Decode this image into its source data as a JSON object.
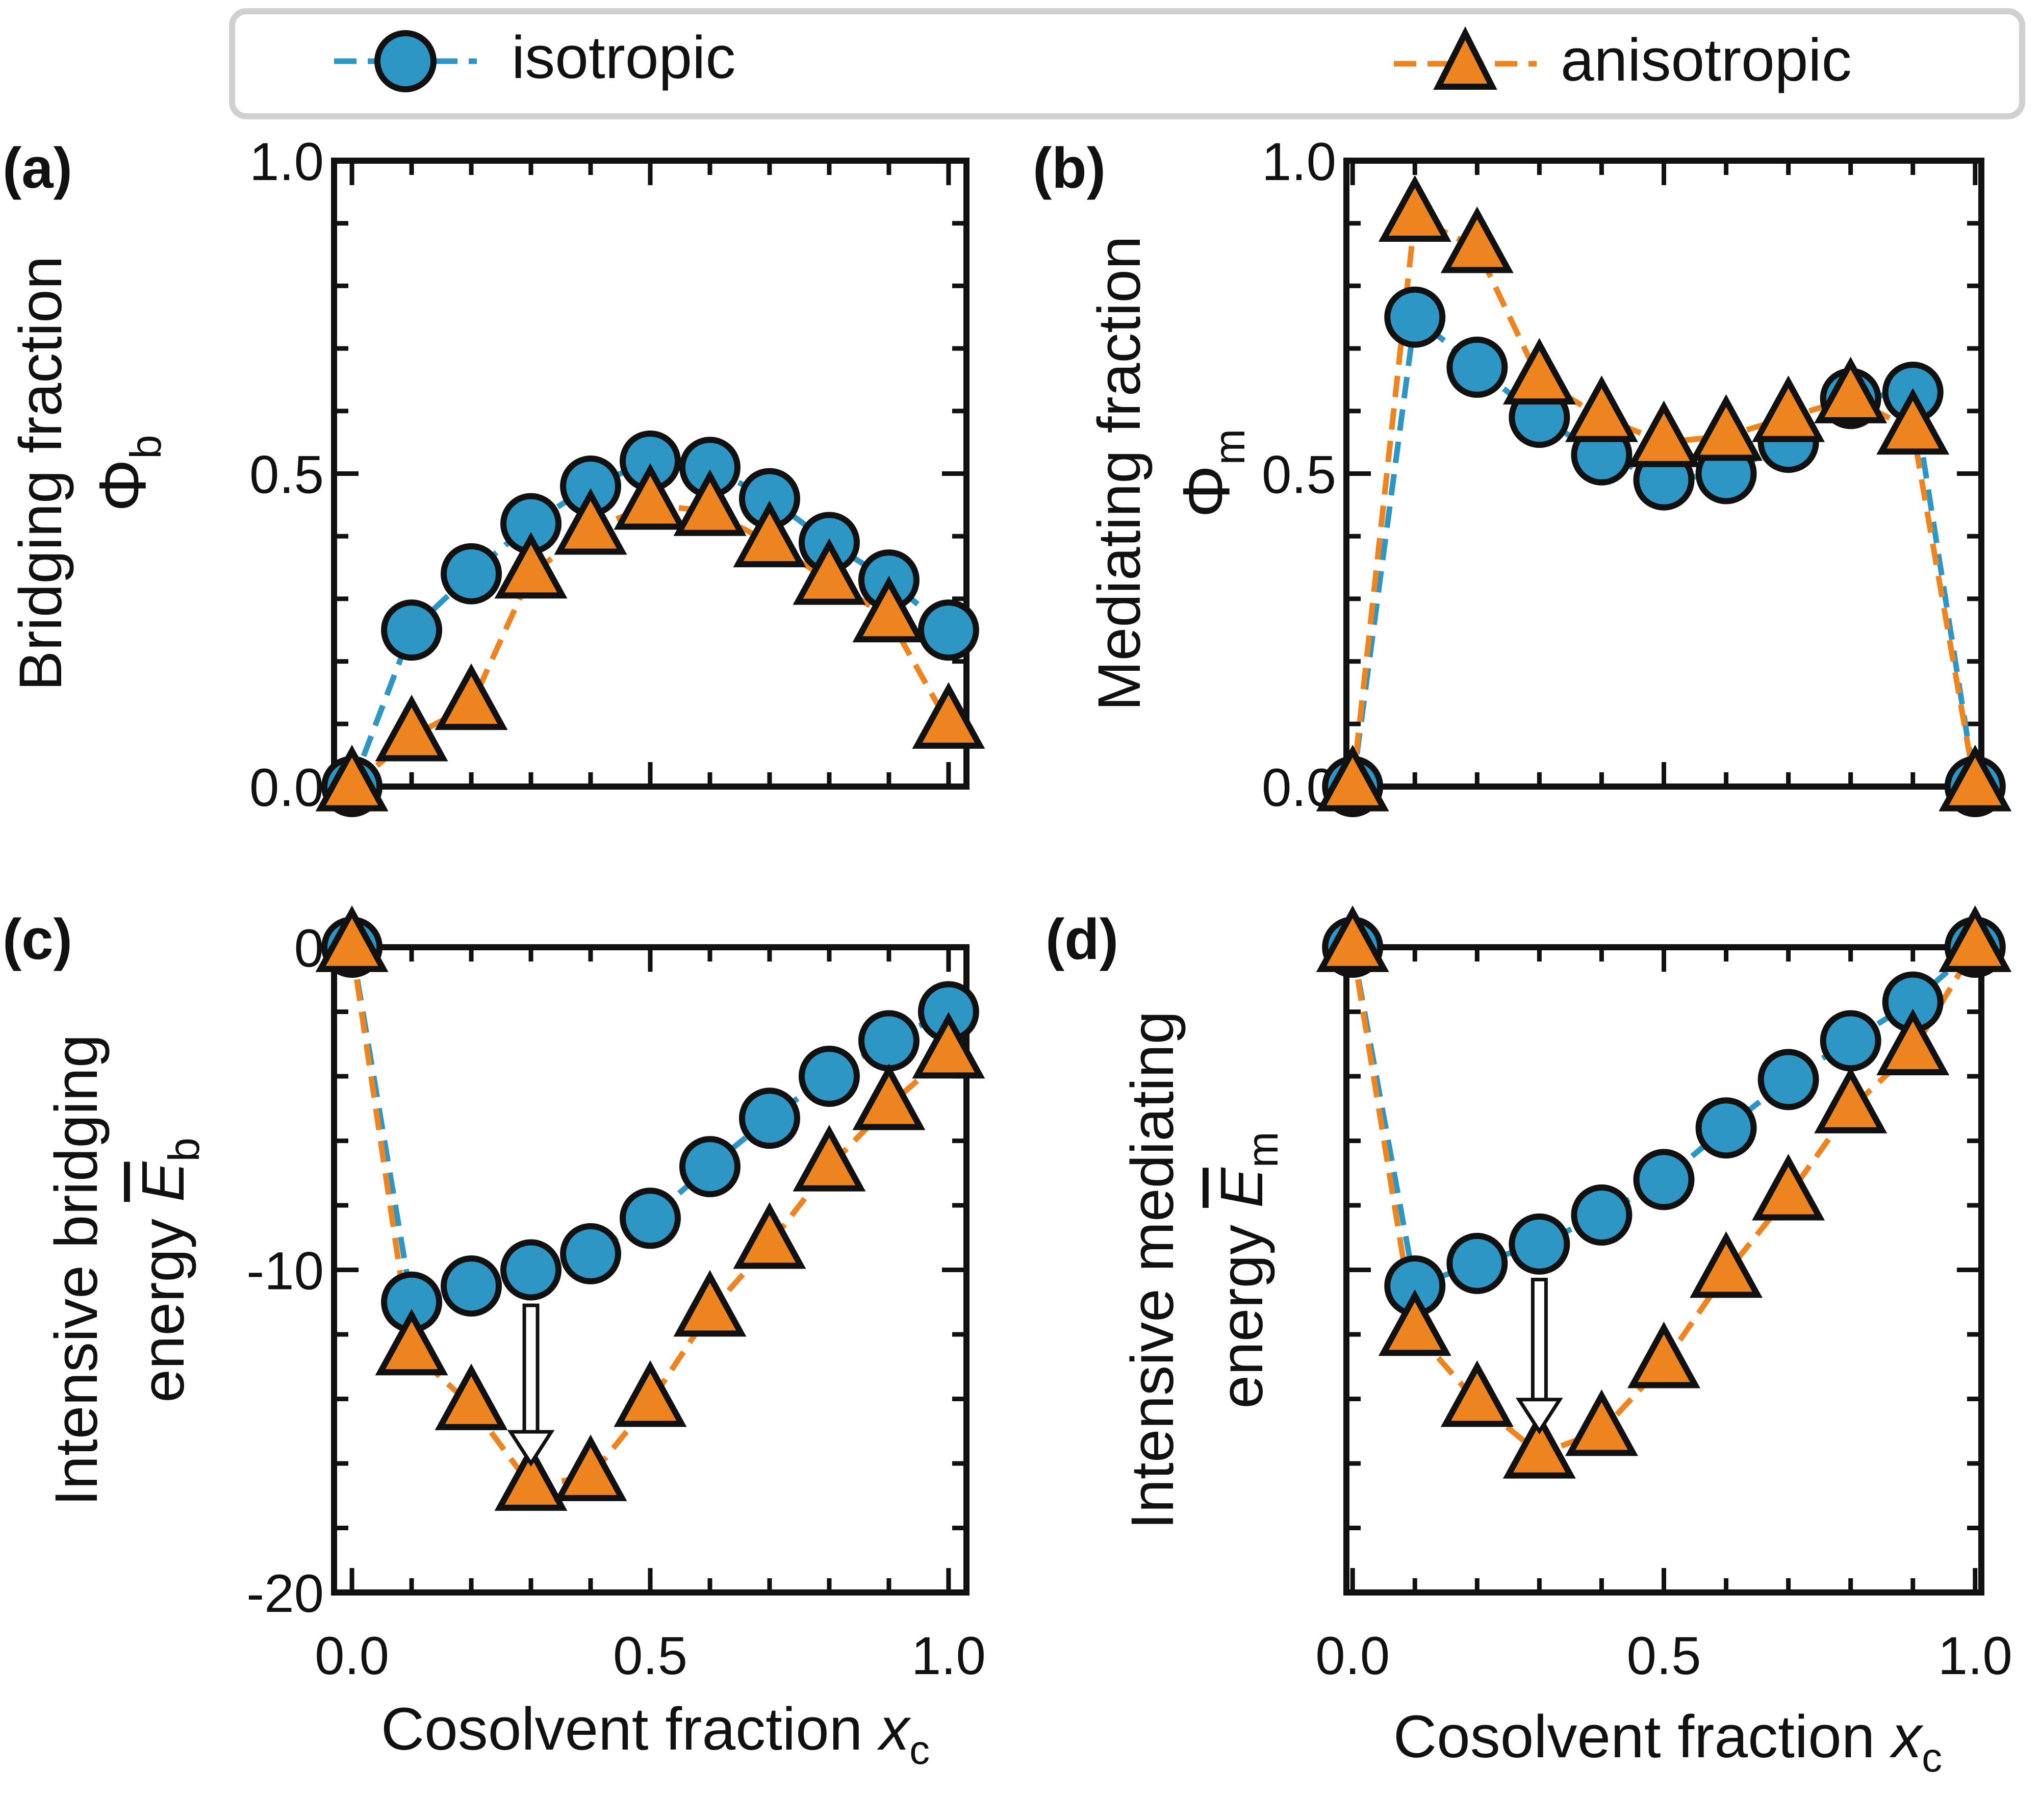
{
  "colors": {
    "isotropic": "#2e96c4",
    "anisotropic": "#ee8420",
    "edge": "#111111",
    "legend_frame": "#d0d0d0"
  },
  "legend": {
    "isotropic_label": "isotropic",
    "anisotropic_label": "anisotropic"
  },
  "chart_data": [
    {
      "id": "a",
      "panel_label": "(a)",
      "type": "line",
      "ylabel_line1": "Bridging fraction",
      "ylabel_sym": "Φ",
      "ylabel_sub": "b",
      "xlabel_pre": "Cosolvent fraction ",
      "xlabel_var": "x",
      "xlabel_sub": "c",
      "xlim": [
        -0.03,
        1.03
      ],
      "ylim": [
        0.0,
        1.0
      ],
      "yticks": [
        0.0,
        0.5,
        1.0
      ],
      "ytick_labels": [
        "0.0",
        "0.5",
        "1.0"
      ],
      "xticks": [
        0.0,
        0.5,
        1.0
      ],
      "xtick_labels": [
        "0.0",
        "0.5",
        "1.0"
      ],
      "show_xticklabels": false,
      "series": [
        {
          "name": "isotropic",
          "x": [
            0.0,
            0.1,
            0.2,
            0.3,
            0.4,
            0.5,
            0.6,
            0.7,
            0.8,
            0.9,
            1.0
          ],
          "y": [
            0.0,
            0.25,
            0.34,
            0.42,
            0.48,
            0.52,
            0.51,
            0.46,
            0.39,
            0.33,
            0.25
          ]
        },
        {
          "name": "anisotropic",
          "x": [
            0.0,
            0.1,
            0.2,
            0.3,
            0.4,
            0.5,
            0.6,
            0.7,
            0.8,
            0.9,
            1.0
          ],
          "y": [
            0.0,
            0.08,
            0.13,
            0.34,
            0.41,
            0.45,
            0.44,
            0.39,
            0.33,
            0.27,
            0.1
          ]
        }
      ]
    },
    {
      "id": "b",
      "panel_label": "(b)",
      "type": "line",
      "ylabel_line1": "Mediating fraction",
      "ylabel_sym": "Φ",
      "ylabel_sub": "m",
      "xlabel_pre": "Cosolvent fraction ",
      "xlabel_var": "x",
      "xlabel_sub": "c",
      "xlim": [
        -0.01,
        1.01
      ],
      "ylim": [
        0.0,
        1.0
      ],
      "yticks": [
        0.0,
        0.5,
        1.0
      ],
      "ytick_labels": [
        "0.0",
        "0.5",
        "1.0"
      ],
      "xticks": [
        0.0,
        0.5,
        1.0
      ],
      "xtick_labels": [
        "0.0",
        "0.5",
        "1.0"
      ],
      "show_xticklabels": false,
      "series": [
        {
          "name": "isotropic",
          "x": [
            0.0,
            0.1,
            0.2,
            0.3,
            0.4,
            0.5,
            0.6,
            0.7,
            0.8,
            0.9,
            1.0
          ],
          "y": [
            0.0,
            0.75,
            0.67,
            0.59,
            0.53,
            0.49,
            0.5,
            0.55,
            0.62,
            0.63,
            0.0
          ]
        },
        {
          "name": "anisotropic",
          "x": [
            0.0,
            0.1,
            0.2,
            0.3,
            0.4,
            0.5,
            0.6,
            0.7,
            0.8,
            0.9,
            1.0
          ],
          "y": [
            0.0,
            0.91,
            0.86,
            0.65,
            0.59,
            0.55,
            0.56,
            0.59,
            0.62,
            0.57,
            0.0
          ]
        }
      ]
    },
    {
      "id": "c",
      "panel_label": "(c)",
      "type": "line",
      "ylabel_line1": "Intensive bridging",
      "ylabel_line2": "energy ",
      "ylabel_sym": "E",
      "ylabel_sub": "b",
      "xlabel_pre": "Cosolvent fraction ",
      "xlabel_var": "x",
      "xlabel_sub": "c",
      "xlim": [
        -0.03,
        1.03
      ],
      "ylim": [
        -20,
        0
      ],
      "yticks": [
        -20,
        -10,
        0
      ],
      "ytick_labels": [
        "-20",
        "-10",
        "0"
      ],
      "xticks": [
        0.0,
        0.5,
        1.0
      ],
      "xtick_labels": [
        "0.0",
        "0.5",
        "1.0"
      ],
      "show_xticklabels": true,
      "series": [
        {
          "name": "isotropic",
          "x": [
            0.0,
            0.1,
            0.2,
            0.3,
            0.4,
            0.5,
            0.6,
            0.7,
            0.8,
            0.9,
            1.0
          ],
          "y": [
            0.0,
            -11.0,
            -10.5,
            -10.0,
            -9.5,
            -8.4,
            -6.8,
            -5.3,
            -4.0,
            -2.9,
            -2.0
          ]
        },
        {
          "name": "anisotropic",
          "x": [
            0.0,
            0.1,
            0.2,
            0.3,
            0.4,
            0.5,
            0.6,
            0.7,
            0.8,
            0.9,
            1.0
          ],
          "y": [
            0.0,
            -12.5,
            -14.2,
            -16.7,
            -16.4,
            -14.1,
            -11.3,
            -9.2,
            -6.8,
            -4.9,
            -3.3
          ]
        }
      ],
      "arrow": {
        "x": 0.3,
        "y_from": -11.1,
        "y_to": -16.0
      }
    },
    {
      "id": "d",
      "panel_label": "(d)",
      "type": "line",
      "ylabel_line1": "Intensive mediating",
      "ylabel_line2": "energy ",
      "ylabel_sym": "E",
      "ylabel_sub": "m",
      "xlabel_pre": "Cosolvent fraction ",
      "xlabel_var": "x",
      "xlabel_sub": "c",
      "xlim": [
        -0.01,
        1.01
      ],
      "ylim": [
        -20,
        0
      ],
      "yticks": [
        -20,
        -10,
        0
      ],
      "ytick_labels": [],
      "xticks": [
        0.0,
        0.5,
        1.0
      ],
      "xtick_labels": [
        "0.0",
        "0.5",
        "1.0"
      ],
      "show_xticklabels": true,
      "series": [
        {
          "name": "isotropic",
          "x": [
            0.0,
            0.1,
            0.2,
            0.3,
            0.4,
            0.5,
            0.6,
            0.7,
            0.8,
            0.9,
            1.0
          ],
          "y": [
            0.0,
            -10.5,
            -9.8,
            -9.2,
            -8.3,
            -7.2,
            -5.6,
            -4.1,
            -2.9,
            -1.7,
            0.0
          ]
        },
        {
          "name": "anisotropic",
          "x": [
            0.0,
            0.1,
            0.2,
            0.3,
            0.4,
            0.5,
            0.6,
            0.7,
            0.8,
            0.9,
            1.0
          ],
          "y": [
            0.0,
            -11.9,
            -14.1,
            -15.7,
            -15.0,
            -12.9,
            -10.1,
            -7.7,
            -5.0,
            -3.2,
            0.0
          ]
        }
      ],
      "arrow": {
        "x": 0.3,
        "y_from": -10.3,
        "y_to": -15.0
      }
    }
  ]
}
